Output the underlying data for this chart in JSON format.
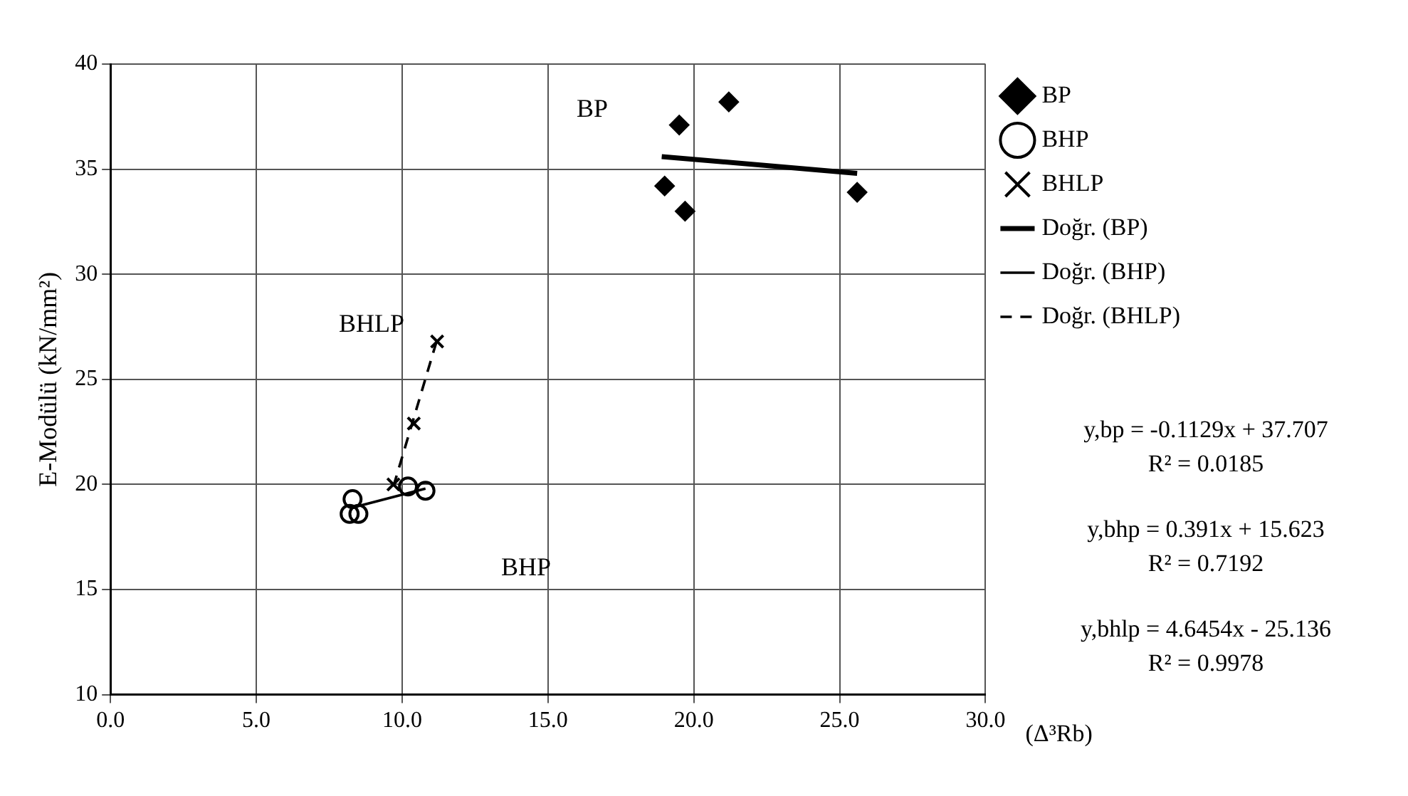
{
  "chart_data": {
    "type": "scatter",
    "xlabel": "(Δ³Rb)",
    "ylabel": "E-Modülü (kN/mm²)",
    "xlim": [
      0,
      30
    ],
    "xticks": [
      {
        "value": 0,
        "label": "0.0"
      },
      {
        "value": 5,
        "label": "5.0"
      },
      {
        "value": 10,
        "label": "10.0"
      },
      {
        "value": 15,
        "label": "15.0"
      },
      {
        "value": 20,
        "label": "20.0"
      },
      {
        "value": 25,
        "label": "25.0"
      },
      {
        "value": 30,
        "label": "30.0"
      }
    ],
    "ylim": [
      10,
      40
    ],
    "yticks": [
      10,
      15,
      20,
      25,
      30,
      35,
      40
    ],
    "grid": true,
    "legend": "right",
    "series": [
      {
        "name": "BP",
        "marker": "diamond",
        "color": "#000000",
        "x": [
          21.2,
          19.5,
          19.0,
          19.7,
          25.6
        ],
        "values": [
          38.2,
          37.1,
          34.2,
          33.0,
          33.9
        ]
      },
      {
        "name": "BHP",
        "marker": "circle",
        "color": "#000000",
        "x": [
          8.3,
          8.2,
          8.5,
          10.2,
          10.8
        ],
        "values": [
          19.3,
          18.6,
          18.6,
          19.9,
          19.7
        ]
      },
      {
        "name": "BHLP",
        "marker": "cross",
        "color": "#000000",
        "x": [
          11.2,
          10.4,
          9.7
        ],
        "values": [
          26.8,
          22.9,
          20.0
        ]
      },
      {
        "name": "Doğr. (BP)",
        "type": "line",
        "marker": "none",
        "line_style": "solid",
        "color": "#000000",
        "x": [
          18.9,
          25.6
        ],
        "values": [
          35.6,
          34.8
        ]
      },
      {
        "name": "Doğr. (BHP)",
        "type": "line",
        "marker": "none",
        "line_style": "solid",
        "color": "#000000",
        "x": [
          8.3,
          10.8
        ],
        "values": [
          18.9,
          19.8
        ]
      },
      {
        "name": "Doğr. (BHLP)",
        "type": "line",
        "marker": "none",
        "line_style": "dashed",
        "color": "#000000",
        "x": [
          9.7,
          11.2
        ],
        "values": [
          19.9,
          26.9
        ]
      }
    ],
    "annotations": [
      "BP",
      "BHLP",
      "BHP",
      "y,bp = -0.1129x + 37.707",
      "R² = 0.0185",
      "y,bhp = 0.391x + 15.623",
      "R² = 0.7192",
      "y,bhlp = 4.6454x - 25.136",
      "R² = 0.9978"
    ]
  }
}
